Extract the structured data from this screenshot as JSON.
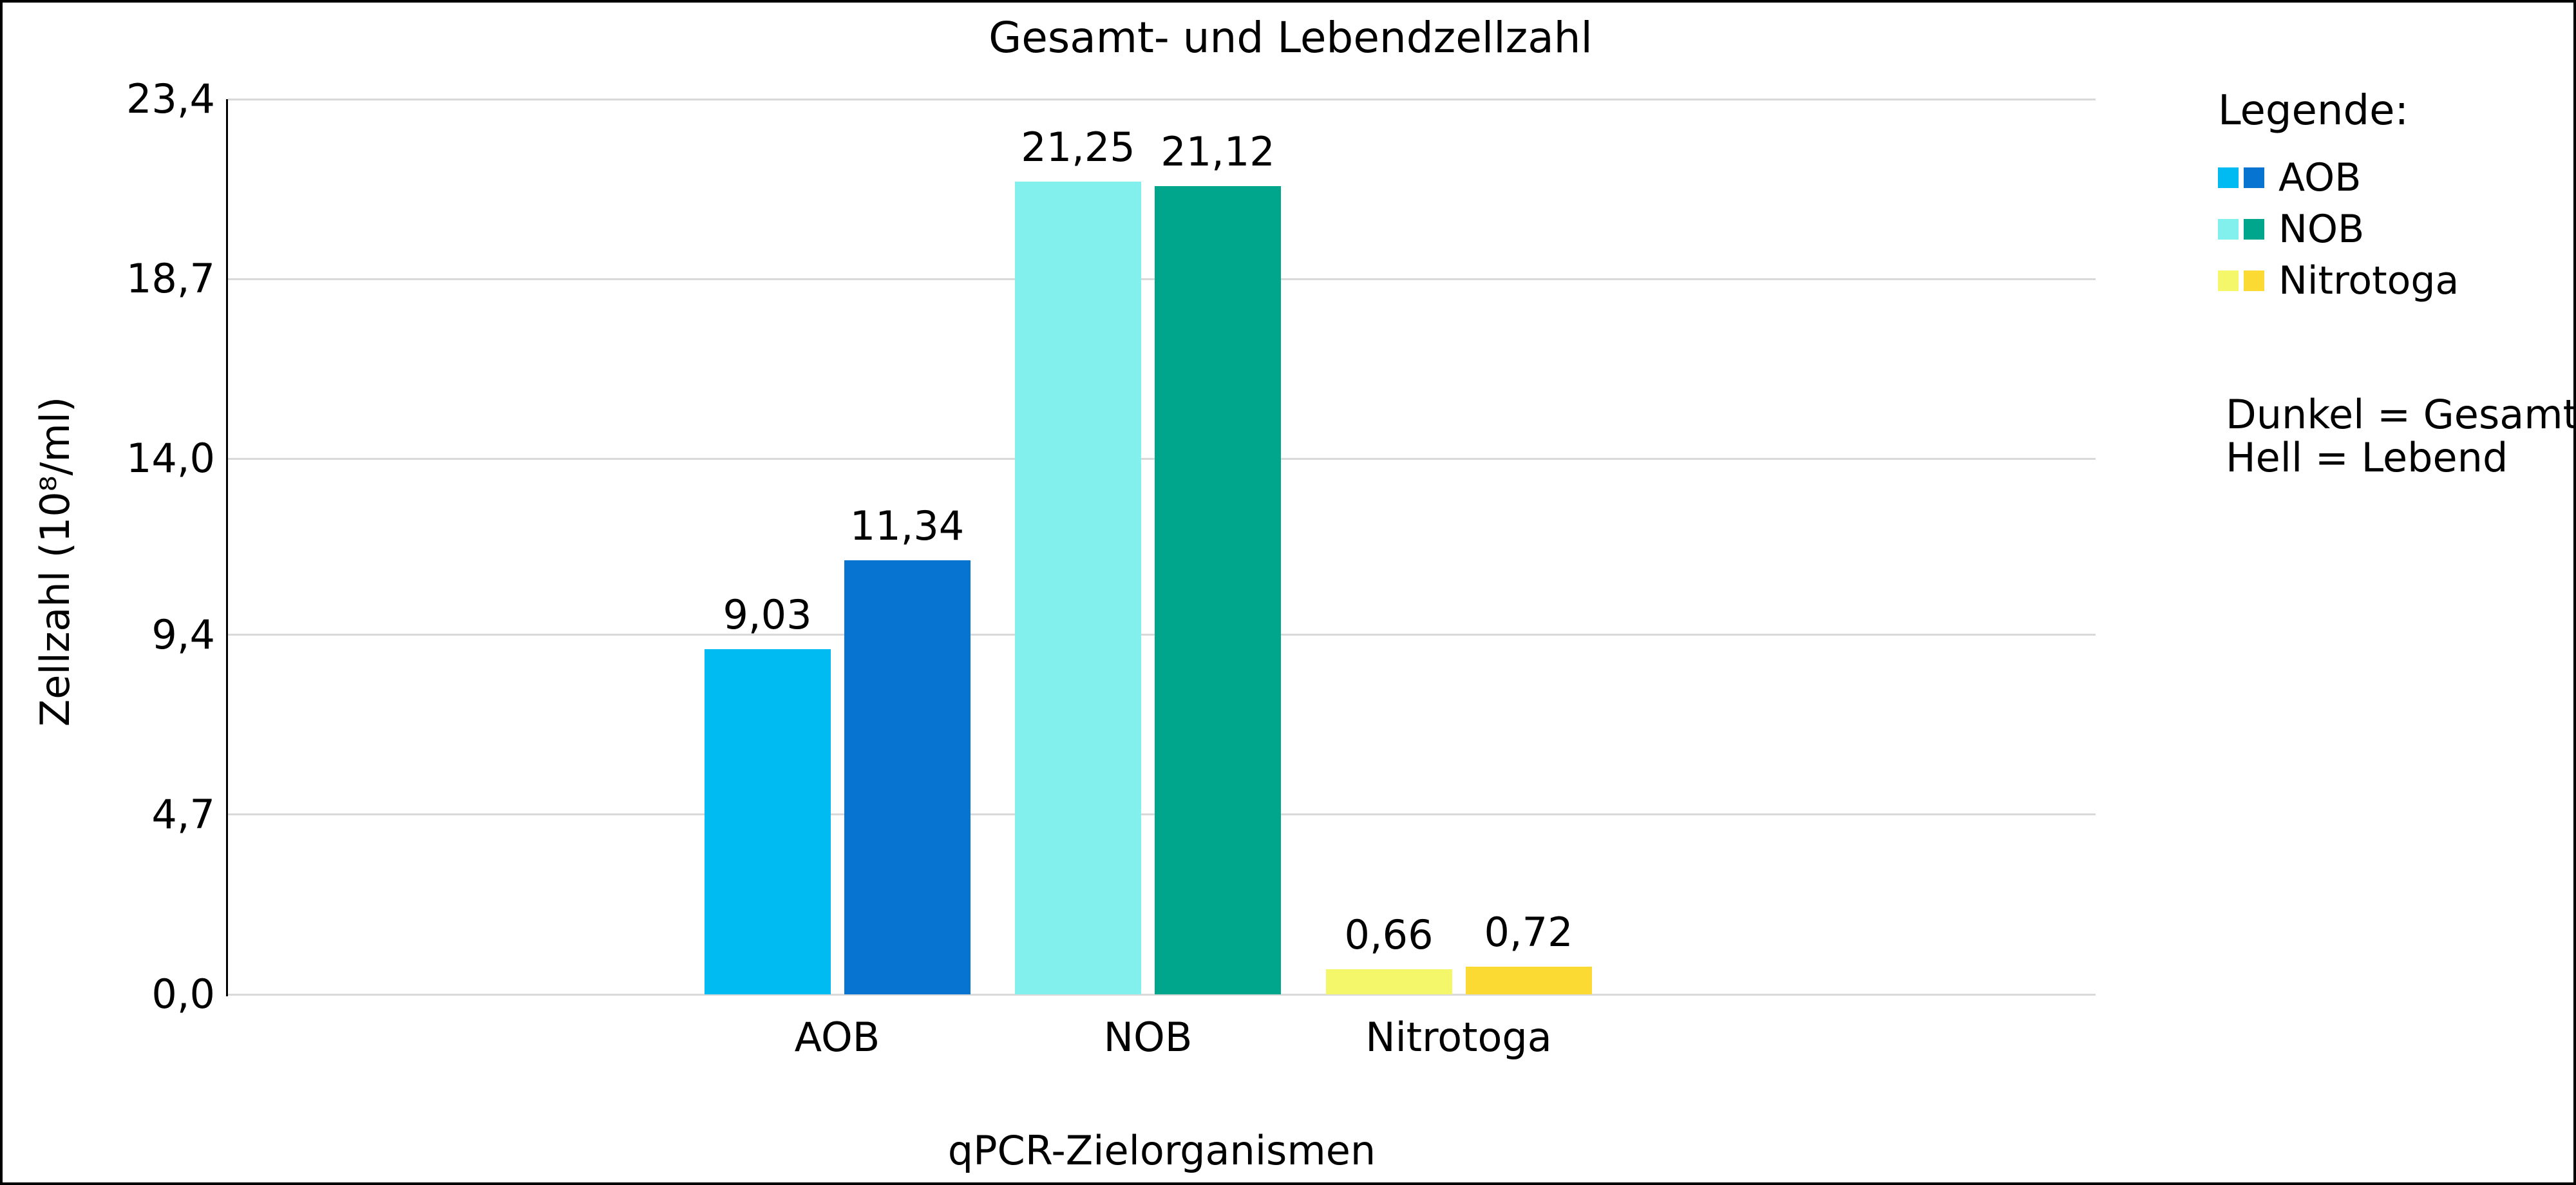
{
  "chart_data": {
    "type": "bar",
    "title": "Gesamt- und Lebendzellzahl",
    "xlabel": "qPCR-Zielorganismen",
    "ylabel": "Zellzahl (10⁸/ml)",
    "ylim": [
      0,
      23.4
    ],
    "grid": "horizontal",
    "yticks": {
      "values": [
        0,
        4.7,
        9.4,
        14.0,
        18.7,
        23.4
      ],
      "labels": [
        "0,0",
        "4,7",
        "9,4",
        "14,0",
        "18,7",
        "23,4"
      ]
    },
    "categories": [
      "AOB",
      "NOB",
      "Nitrotoga"
    ],
    "series": [
      {
        "name": "Hell = Lebend",
        "values": [
          9.03,
          21.25,
          0.66
        ],
        "value_labels": [
          "9,03",
          "21,25",
          "0,66"
        ],
        "colors": [
          "#00BBF2",
          "#82F0EC",
          "#F4F769"
        ]
      },
      {
        "name": "Dunkel = Gesamt",
        "values": [
          11.34,
          21.12,
          0.72
        ],
        "value_labels": [
          "11,34",
          "21,12",
          "0,72"
        ],
        "colors": [
          "#0674D0",
          "#00A68C",
          "#FBDB33"
        ]
      }
    ],
    "legend": {
      "heading": "Legende:",
      "position": "right",
      "items": [
        {
          "label": "AOB",
          "swatches": [
            "#00BBF2",
            "#0674D0"
          ]
        },
        {
          "label": "NOB",
          "swatches": [
            "#82F0EC",
            "#00A68C"
          ]
        },
        {
          "label": "Nitrotoga",
          "swatches": [
            "#F4F769",
            "#FBDB33"
          ]
        }
      ],
      "note_line1": "Dunkel = Gesamt",
      "note_line2": "Hell = Lebend"
    },
    "colors": {
      "gridline": "#D9D9D9",
      "axis_spine": "#000000",
      "background": "#FFFFFF",
      "text": "#000000"
    }
  }
}
